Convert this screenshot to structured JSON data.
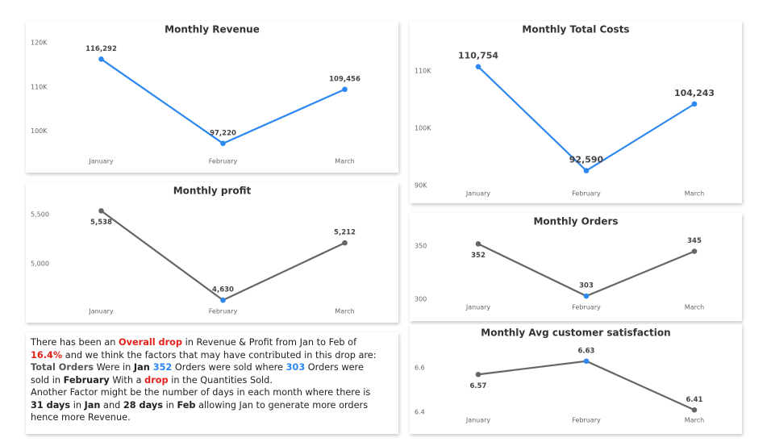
{
  "chart_data": [
    {
      "type": "line",
      "title": "Monthly Revenue",
      "categories": [
        "January",
        "February",
        "March"
      ],
      "values": [
        116292,
        97220,
        109456
      ],
      "value_labels": [
        "116,292",
        "97,220",
        "109,456"
      ],
      "color": "#2d87f0",
      "marker_colors": [
        "#2d87f0",
        "#2d87f0",
        "#2d87f0"
      ],
      "ylim": [
        95000,
        120000
      ],
      "yticks": [
        {
          "value": 100000,
          "label": "100K"
        },
        {
          "value": 110000,
          "label": "110K"
        },
        {
          "value": 120000,
          "label": "120K"
        }
      ]
    },
    {
      "type": "line",
      "title": "Monthly Total Costs",
      "categories": [
        "January",
        "February",
        "March"
      ],
      "values": [
        110754,
        92590,
        104243
      ],
      "value_labels": [
        "110,754",
        "92,590",
        "104,243"
      ],
      "color": "#2d87f0",
      "marker_colors": [
        "#2d87f0",
        "#2d87f0",
        "#2d87f0"
      ],
      "ylim": [
        90000,
        113000
      ],
      "yticks": [
        {
          "value": 90000,
          "label": "90K"
        },
        {
          "value": 100000,
          "label": "100K"
        },
        {
          "value": 110000,
          "label": "110K"
        }
      ]
    },
    {
      "type": "line",
      "title": "Monthly profit",
      "categories": [
        "January",
        "February",
        "March"
      ],
      "values": [
        5538,
        4630,
        5212
      ],
      "value_labels": [
        "5,538",
        "4,630",
        "5,212"
      ],
      "color": "#666666",
      "marker_colors": [
        "#666666",
        "#2d87f0",
        "#666666"
      ],
      "ylim": [
        4550,
        5650
      ],
      "yticks": [
        {
          "value": 5000,
          "label": "5,000"
        },
        {
          "value": 5500,
          "label": "5,500"
        }
      ]
    },
    {
      "type": "line",
      "title": "Monthly Orders",
      "categories": [
        "January",
        "February",
        "March"
      ],
      "values": [
        352,
        303,
        345
      ],
      "color": "#666666",
      "marker_colors": [
        "#666666",
        "#2d87f0",
        "#666666"
      ],
      "ylim": [
        295,
        360
      ],
      "yticks": [
        300,
        350
      ]
    },
    {
      "type": "line",
      "title": "Monthly Avg customer satisfaction",
      "categories": [
        "January",
        "February",
        "March"
      ],
      "values": [
        6.57,
        6.63,
        6.41
      ],
      "color": "#666666",
      "marker_colors": [
        "#666666",
        "#2d87f0",
        "#666666"
      ],
      "ylim": [
        6.38,
        6.68
      ],
      "yticks": [
        6.4,
        6.6
      ]
    }
  ],
  "note": {
    "paragraphs": [
      [
        {
          "text": "There has been an ",
          "style": "plain"
        },
        {
          "text": "Overall drop",
          "style": "red"
        },
        {
          "text": " in Revenue & Profit from Jan to Feb of ",
          "style": "plain"
        },
        {
          "text": "16.4%",
          "style": "red"
        },
        {
          "text": " and we think the factors that may have contributed in this drop are: ",
          "style": "plain"
        },
        {
          "text": "Total Orders",
          "style": "grey"
        },
        {
          "text": " Were in ",
          "style": "plain"
        },
        {
          "text": "Jan",
          "style": "bold"
        },
        {
          "text": " 352",
          "style": "blue"
        },
        {
          "text": " Orders were sold where ",
          "style": "plain"
        },
        {
          "text": "303",
          "style": "blue"
        },
        {
          "text": " Orders were sold in ",
          "style": "plain"
        },
        {
          "text": "February",
          "style": "bold"
        },
        {
          "text": " With a ",
          "style": "plain"
        },
        {
          "text": "drop",
          "style": "red"
        },
        {
          "text": " in the Quantities Sold.",
          "style": "plain"
        }
      ],
      [
        {
          "text": "Another Factor might be the number of days in each month where there is ",
          "style": "plain"
        },
        {
          "text": "31 days",
          "style": "bold"
        },
        {
          "text": " in ",
          "style": "plain"
        },
        {
          "text": "Jan",
          "style": "bold"
        },
        {
          "text": " and ",
          "style": "plain"
        },
        {
          "text": "28 days",
          "style": "bold"
        },
        {
          "text": " in ",
          "style": "plain"
        },
        {
          "text": "Feb",
          "style": "bold"
        },
        {
          "text": " allowing Jan to generate more orders hence more Revenue.",
          "style": "plain"
        }
      ]
    ]
  }
}
